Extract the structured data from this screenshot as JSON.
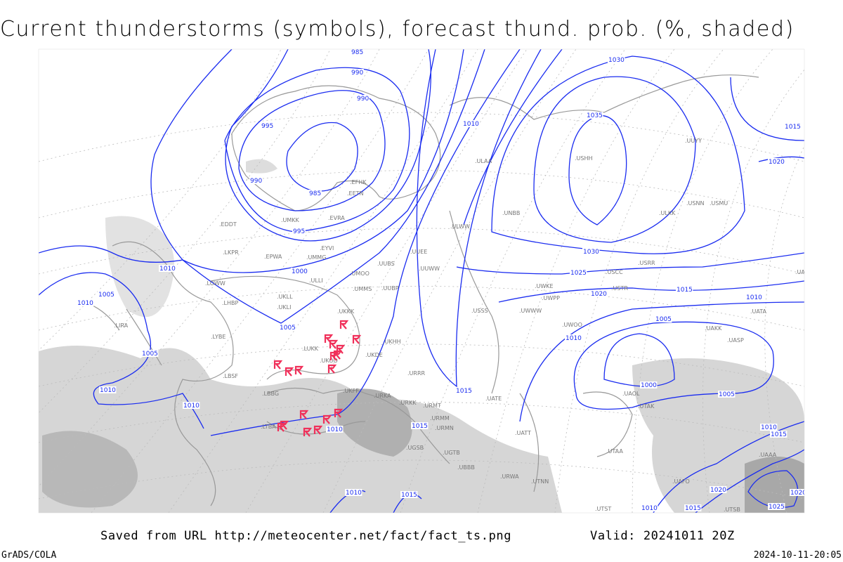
{
  "title": "Current thunderstorms (symbols), forecast thund. prob. (%, shaded)",
  "footer": {
    "saved": "Saved from URL http://meteocenter.net/fact/fact_ts.png",
    "valid": "Valid: 20241011 20Z",
    "software": "GrADS/COLA",
    "timestamp": "2024-10-11-20:05"
  },
  "colors": {
    "isobar": "#1a2cf0",
    "thunderstorm_symbol": "#f0305a",
    "coastline": "#999999",
    "shading": "#c8c8c8"
  },
  "legend": {
    "symbols": "thunderstorm-symbol",
    "contours": "sea-level pressure (hPa)",
    "shaded": "forecast thunderstorm probability (%)"
  },
  "isobar_labels": [
    "985",
    "990",
    "990",
    "995",
    "990",
    "985",
    "995",
    "1000",
    "1005",
    "1010",
    "1010",
    "1005",
    "1005",
    "1010",
    "1010",
    "1010",
    "1015",
    "1015",
    "1010",
    "1030",
    "1035",
    "1030",
    "1025",
    "1020",
    "1015",
    "1010",
    "1005",
    "1000",
    "1005",
    "1010",
    "1015",
    "1020",
    "1015",
    "1010",
    "1015",
    "1010",
    "1015",
    "1020",
    "1025",
    "1020",
    "1010"
  ],
  "station_labels": [
    "EDDT",
    "EPWA",
    "LKPR",
    "LOWW",
    "LHBP",
    "LIRA",
    "LYBE",
    "LBSF",
    "LBBG",
    "LTBA",
    "EVRA",
    "EYVI",
    "UMMG",
    "UMKK",
    "ULLI",
    "EFHK",
    "EETN",
    "ULAA",
    "ULWW",
    "UUEE",
    "UUWW",
    "UMMS",
    "UMOO",
    "UUBS",
    "UUBP",
    "UKLL",
    "UKLI",
    "UKKK",
    "UKHH",
    "UKOO",
    "LUKK",
    "UKDE",
    "UKFF",
    "URKA",
    "URKK",
    "URRR",
    "URMT",
    "URMM",
    "URMN",
    "UGSB",
    "UGTB",
    "UBBB",
    "URWA",
    "UATE",
    "UATT",
    "UWOO",
    "UWWW",
    "UWKE",
    "UWPP",
    "USSS",
    "USCC",
    "USTR",
    "USRR",
    "USNN",
    "USMU",
    "UUYY",
    "USHH",
    "ULKK",
    "UNBB",
    "UACC",
    "UAKK",
    "UASP",
    "UATA",
    "UAOL",
    "UTAK",
    "UTNN",
    "UTAA",
    "UTST",
    "UTSB",
    "UAFO",
    "UAAA"
  ],
  "thunderstorm_count": 18
}
